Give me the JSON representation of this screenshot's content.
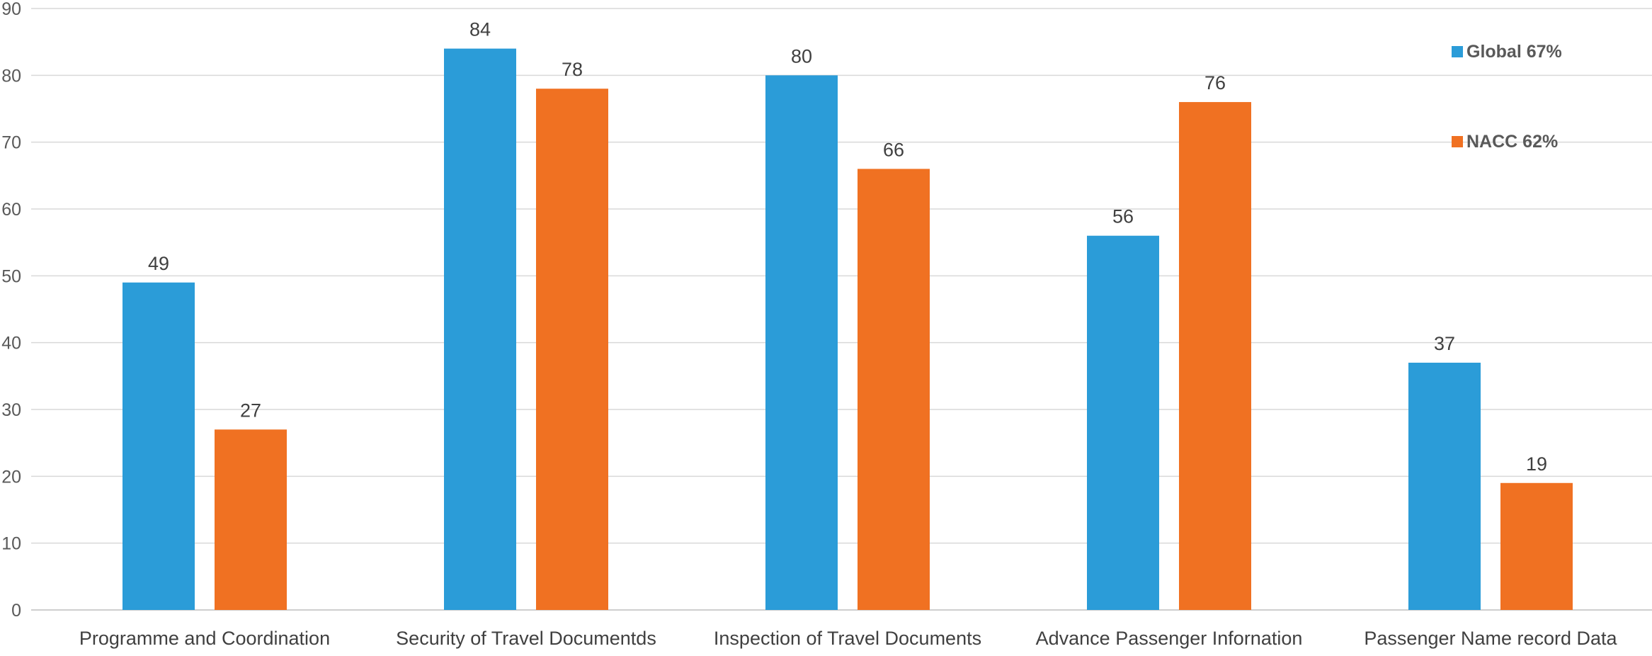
{
  "chart_data": {
    "type": "bar",
    "title": "",
    "xlabel": "",
    "ylabel": "",
    "ylim": [
      0,
      90
    ],
    "yticks": [
      0,
      10,
      20,
      30,
      40,
      50,
      60,
      70,
      80,
      90
    ],
    "grid": true,
    "legend_position": "top-right",
    "categories": [
      "Programme and Coordination",
      "Security of Travel Documentds",
      "Inspection of Travel Documents",
      "Advance Passenger Infornation",
      "Passenger Name record Data"
    ],
    "series": [
      {
        "name": "Global 67%",
        "color": "#2b9cd8",
        "values": [
          49,
          84,
          80,
          56,
          37
        ]
      },
      {
        "name": "NACC 62%",
        "color": "#f07122",
        "values": [
          27,
          78,
          66,
          76,
          19
        ]
      }
    ]
  }
}
